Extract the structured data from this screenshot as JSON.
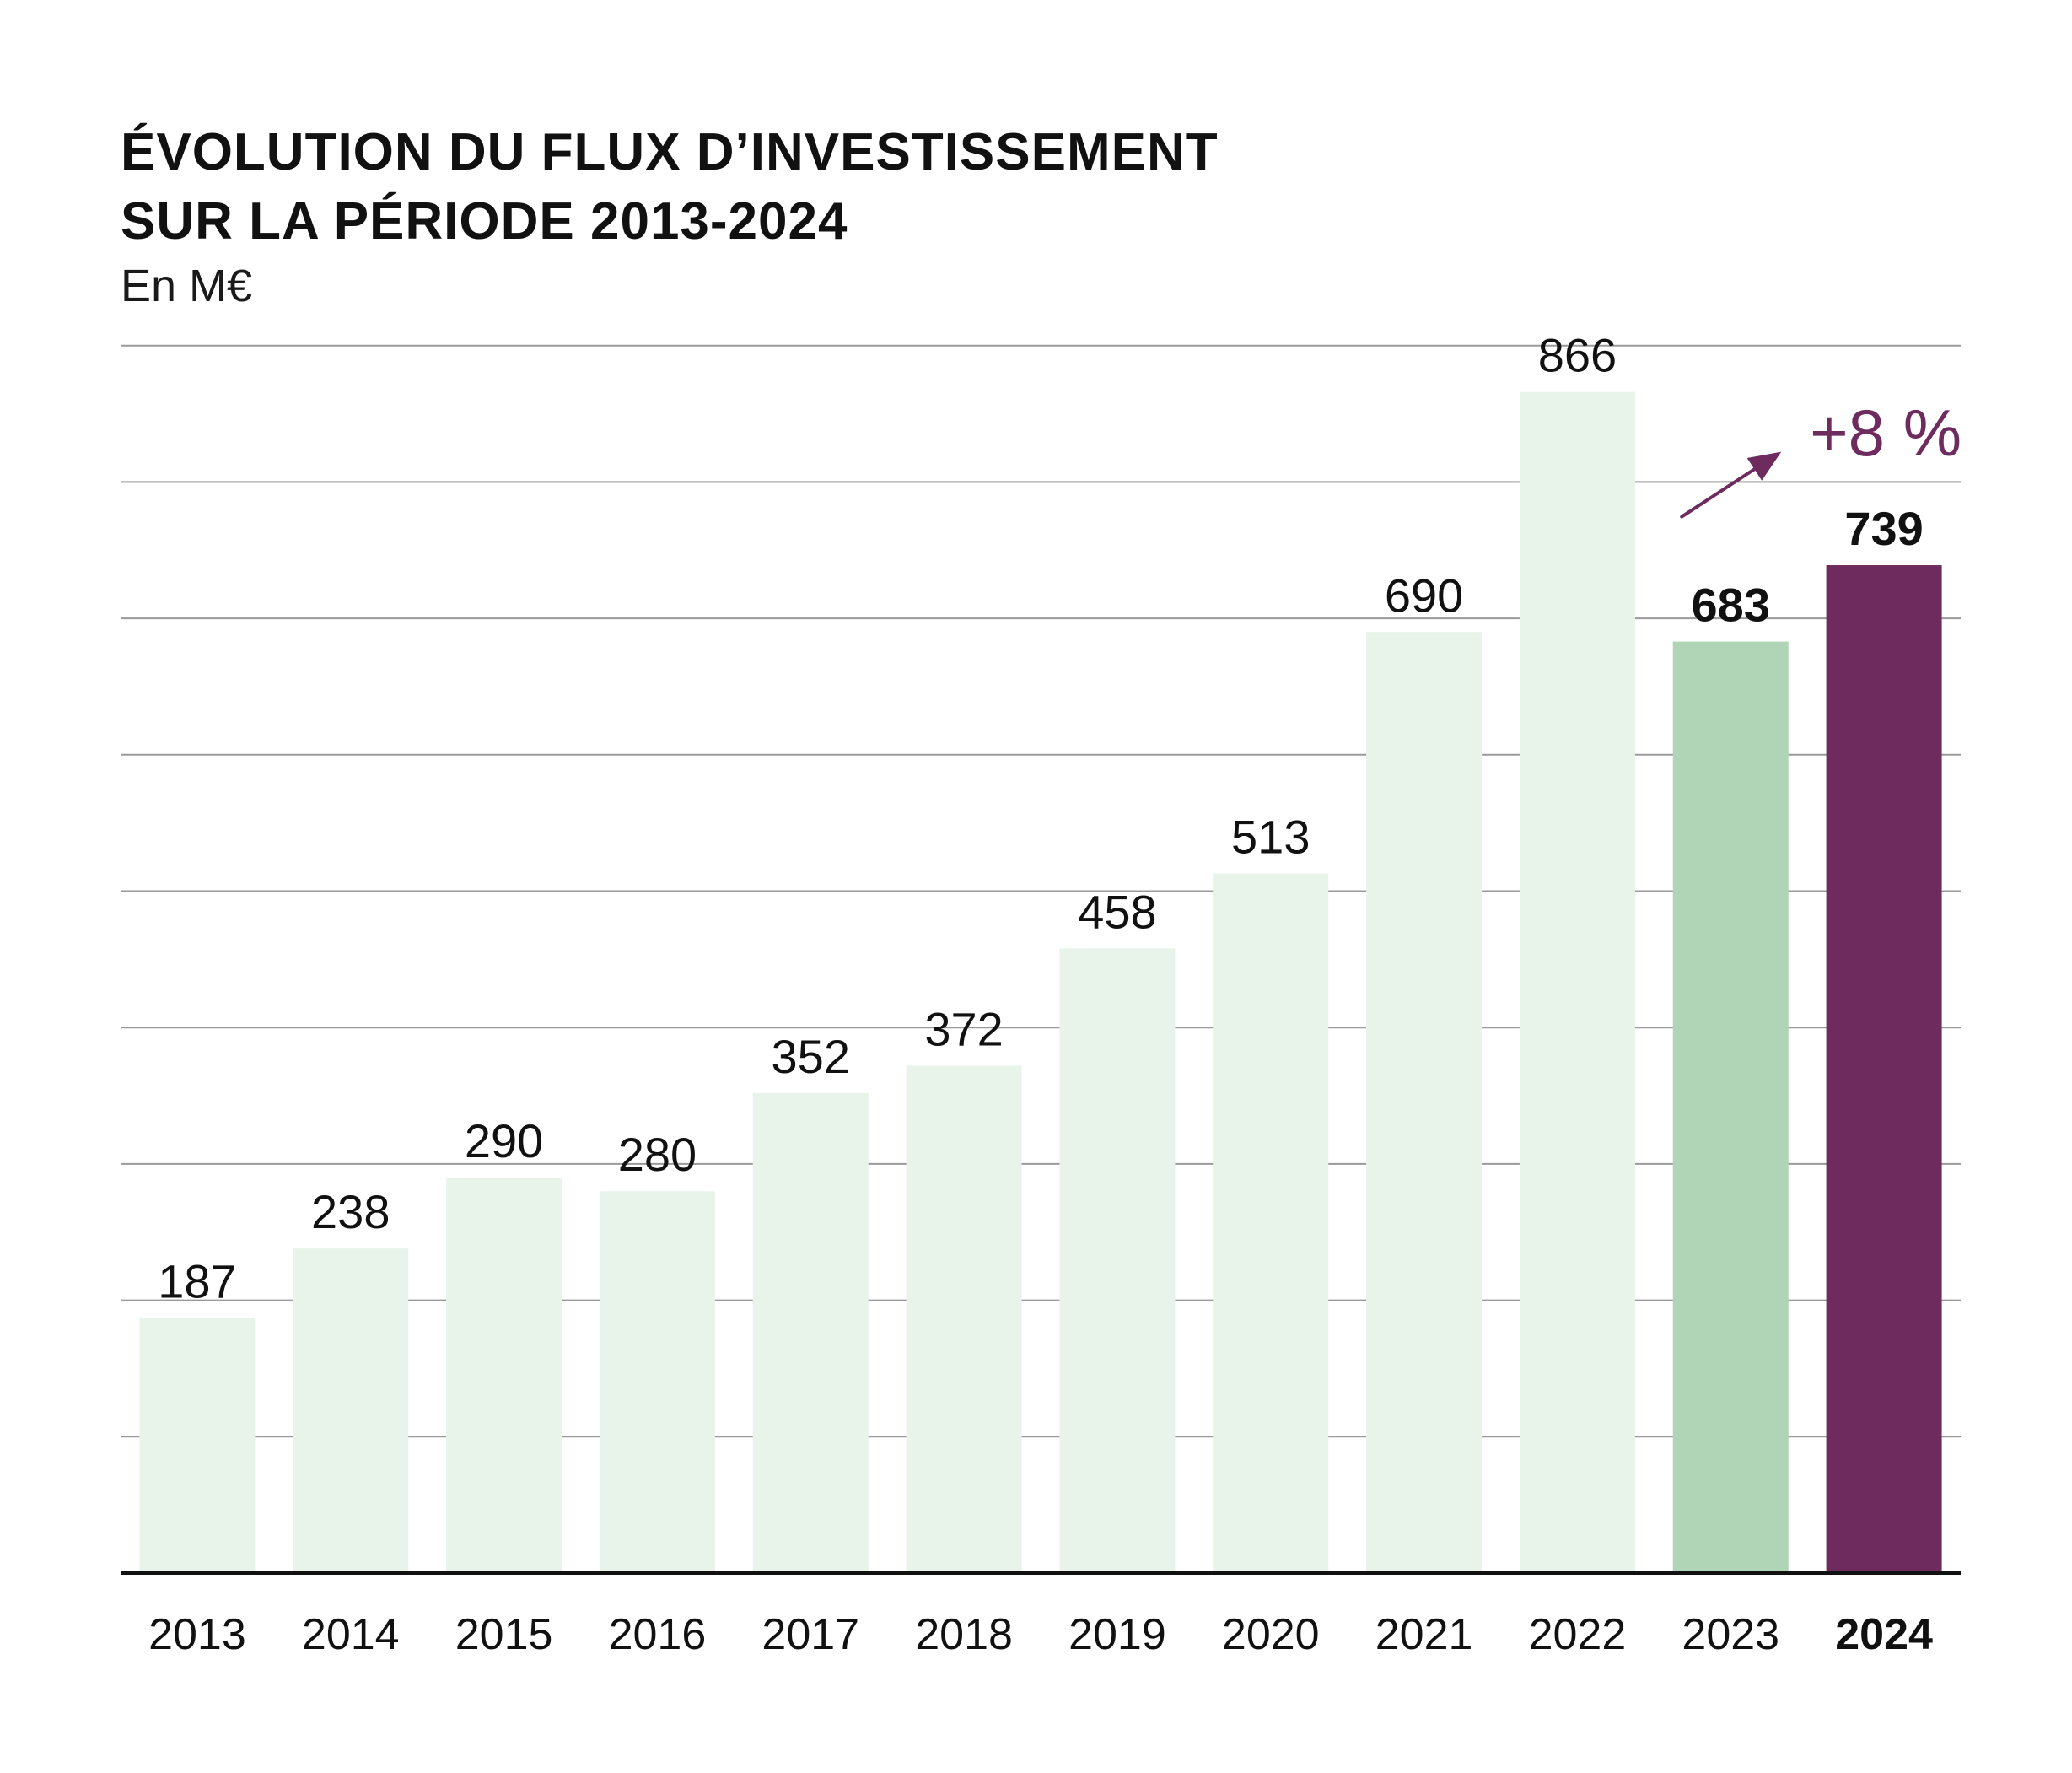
{
  "title_lines": [
    "ÉVOLUTION DU FLUX D’INVESTISSEMENT",
    "SUR LA PÉRIODE 2013-2024"
  ],
  "unit": "En M€",
  "colors": {
    "bar_light": "#e8f3ea",
    "bar_2023": "#afd5b6",
    "bar_2024": "#6e2b5e",
    "accent": "#6e2b5e",
    "grid": "#9a9a9a",
    "axis": "#111111",
    "text": "#111111"
  },
  "chart_data": {
    "type": "bar",
    "title": "ÉVOLUTION DU FLUX D’INVESTISSEMENT SUR LA PÉRIODE 2013-2024",
    "subtitle": "En M€",
    "categories": [
      "2013",
      "2014",
      "2015",
      "2016",
      "2017",
      "2018",
      "2019",
      "2020",
      "2021",
      "2022",
      "2023",
      "2024"
    ],
    "values": [
      187,
      238,
      290,
      280,
      352,
      372,
      458,
      513,
      690,
      866,
      683,
      739
    ],
    "value_labels": [
      "187",
      "238",
      "290",
      "280",
      "352",
      "372",
      "458",
      "513",
      "690",
      "866",
      "683",
      "739"
    ],
    "bar_styles": [
      "light",
      "light",
      "light",
      "light",
      "light",
      "light",
      "light",
      "light",
      "light",
      "light",
      "medium",
      "highlight"
    ],
    "highlight_category": "2024",
    "bold_labels": [
      "683",
      "739",
      "2024"
    ],
    "ylim": [
      0,
      900
    ],
    "ygrid_step": 100,
    "grid": true,
    "y_tick_labels_shown": false,
    "annotation": {
      "text": "+8 %",
      "from": "2023",
      "to": "2024",
      "arrow": true
    },
    "xlabel": "",
    "ylabel": ""
  }
}
